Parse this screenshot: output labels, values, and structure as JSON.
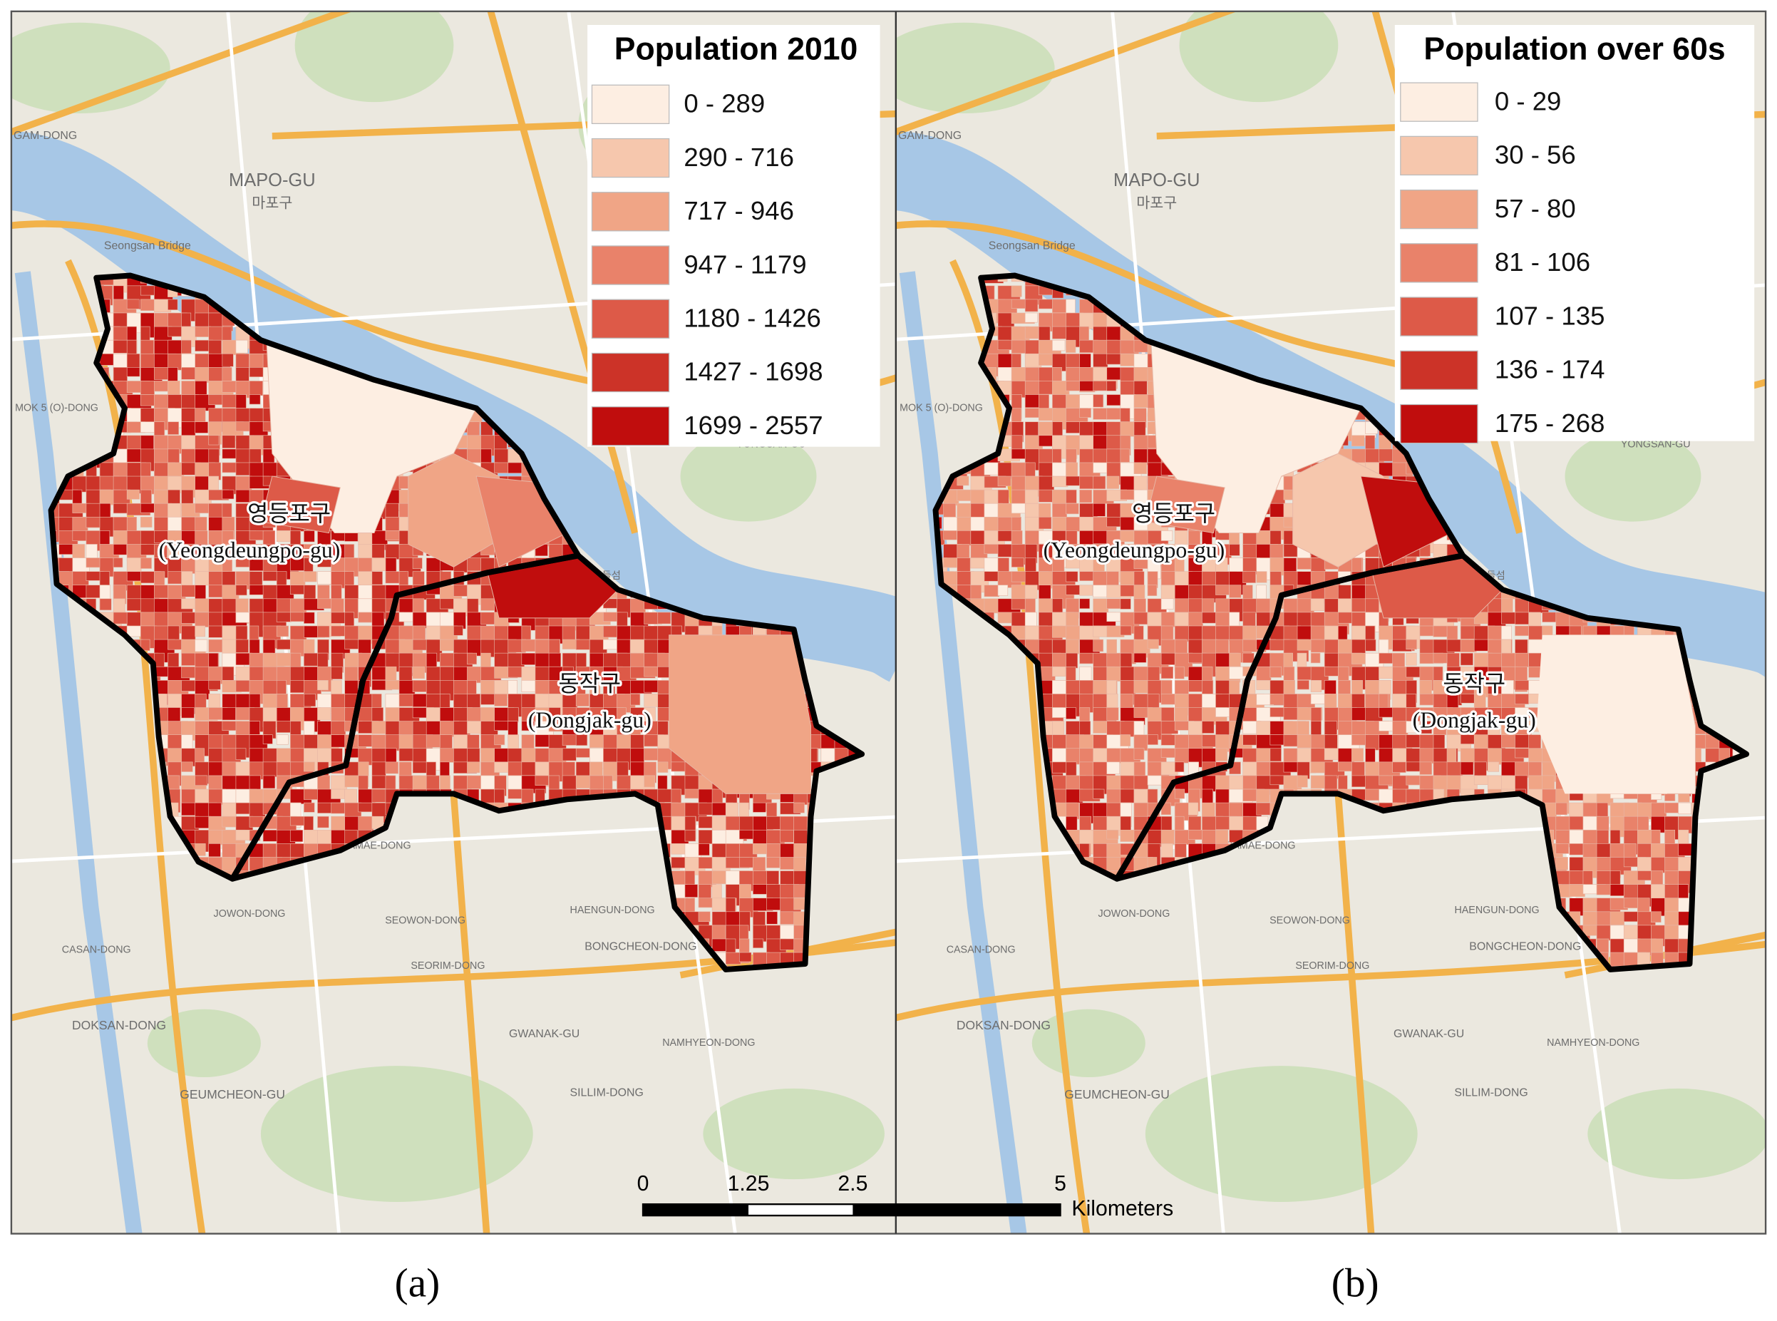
{
  "panels": [
    {
      "legend_title": "Population 2010",
      "legend_items": [
        {
          "label": "0 - 289",
          "color": "#fdeee2"
        },
        {
          "label": "290 - 716",
          "color": "#f6c7ad"
        },
        {
          "label": "717 - 946",
          "color": "#f0a586"
        },
        {
          "label": "947 - 1179",
          "color": "#e9826a"
        },
        {
          "label": "1180 - 1426",
          "color": "#dd5a48"
        },
        {
          "label": "1427 - 1698",
          "color": "#cc3328"
        },
        {
          "label": "1699 - 2557",
          "color": "#c00d0d"
        }
      ],
      "districts": [
        {
          "name_ko": "영등포구",
          "name_en": "(Yeongdeungpo-gu)"
        },
        {
          "name_ko": "동작구",
          "name_en": "(Dongjak-gu)"
        }
      ],
      "caption": "(a)"
    },
    {
      "legend_title": "Population over 60s",
      "legend_items": [
        {
          "label": "0 - 29",
          "color": "#fdeee2"
        },
        {
          "label": "30 - 56",
          "color": "#f6c7ad"
        },
        {
          "label": "57 - 80",
          "color": "#f0a586"
        },
        {
          "label": "81 - 106",
          "color": "#e9826a"
        },
        {
          "label": "107 - 135",
          "color": "#dd5a48"
        },
        {
          "label": "136 - 174",
          "color": "#cc3328"
        },
        {
          "label": "175 - 268",
          "color": "#c00d0d"
        }
      ],
      "districts": [
        {
          "name_ko": "영등포구",
          "name_en": "(Yeongdeungpo-gu)"
        },
        {
          "name_ko": "동작구",
          "name_en": "(Dongjak-gu)"
        }
      ],
      "caption": "(b)"
    }
  ],
  "scale_bar": {
    "ticks": [
      "0",
      "1.25",
      "2.5",
      "5"
    ],
    "unit": "Kilometers"
  },
  "map_labels": [
    "MAPO-GU",
    "마포구",
    "Seongsan Bridge",
    "GAM-DONG",
    "MOK 5 (O)-DONG",
    "YONGSAN-GU",
    "BORAMAE-DONG",
    "JOWON-DONG",
    "SEOWON-DONG",
    "DOKSAN-DONG",
    "GWANAK-GU",
    "GEUMCHEON-GU",
    "SILLIM-DONG",
    "BONGCHEON-DONG",
    "HAENGUN-DONG",
    "CASAN-DONG",
    "노들섬",
    "SEORIM-DONG",
    "NAMHYEON-DONG"
  ]
}
